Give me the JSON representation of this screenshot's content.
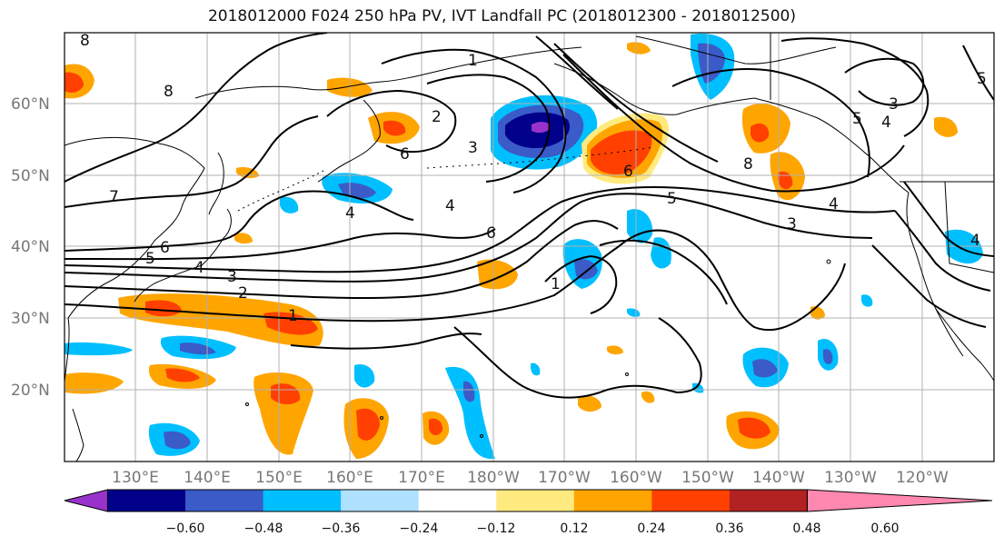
{
  "title": "2018012000 F024 250 hPa PV, IVT Landfall PC (2018012300 - 2018012500)",
  "lat_ticks": [
    "60°N",
    "50°N",
    "40°N",
    "30°N",
    "20°N"
  ],
  "lon_ticks": [
    "130°E",
    "140°E",
    "150°E",
    "160°E",
    "170°E",
    "180°W",
    "170°W",
    "160°W",
    "150°W",
    "140°W",
    "130°W",
    "120°W"
  ],
  "colorbar": {
    "colors": [
      "#9932cc",
      "#00008b",
      "#3a5bc8",
      "#00bfff",
      "#b0e0ff",
      "#ffffff",
      "#ffea80",
      "#ffa500",
      "#ff4000",
      "#b22222",
      "#ff88b0"
    ],
    "labels": [
      "−0.60",
      "−0.48",
      "−0.36",
      "−0.24",
      "−0.12",
      "0.12",
      "0.24",
      "0.36",
      "0.48",
      "0.60"
    ]
  },
  "contour_labels": [
    "8",
    "8",
    "7",
    "6",
    "5",
    "4",
    "3",
    "2",
    "1",
    "1",
    "2",
    "3",
    "6",
    "4",
    "4",
    "6",
    "1",
    "6",
    "5",
    "4",
    "3",
    "8",
    "5",
    "4",
    "5",
    "3",
    "4"
  ],
  "features": {
    "coastline_color": "#000000",
    "contour_color": "#000000",
    "gridline_color": "#b0b0b0"
  }
}
